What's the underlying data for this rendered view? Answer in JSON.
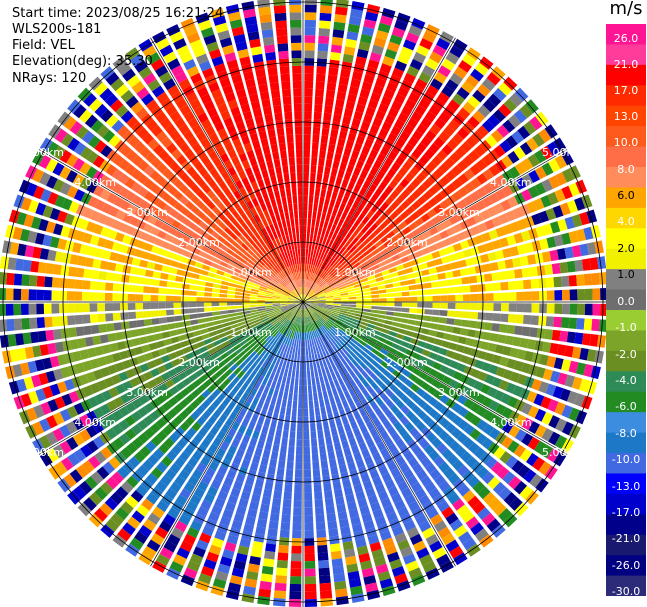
{
  "header": {
    "start_time": "Start time: 2023/08/25 16:21:24",
    "site": "WLS200s-181",
    "field": "Field: VEL",
    "elevation": "Elevation(deg): 35.30",
    "nrays": "NRays: 120"
  },
  "colorbar": {
    "unit": "m/s",
    "ticks": [
      "26.0",
      "21.0",
      "17.0",
      "13.0",
      "10.0",
      "8.0",
      "6.0",
      "4.0",
      "2.0",
      "1.0",
      "0.0",
      "-1.0",
      "-2.0",
      "-4.0",
      "-6.0",
      "-8.0",
      "-10.0",
      "-13.0",
      "-17.0",
      "-21.0",
      "-26.0",
      "-30.0"
    ],
    "colors": [
      "#ff1493",
      "#ff3c9a",
      "#ff0000",
      "#ff2a00",
      "#ff4500",
      "#ff5a1e",
      "#ff6e46",
      "#ff8c5a",
      "#ffa500",
      "#ffd700",
      "#ffff00",
      "#f0f000",
      "#808080",
      "#6e6e6e",
      "#9acd32",
      "#7ba428",
      "#6b8e23",
      "#2e8b57",
      "#228b22",
      "#3c8ce0",
      "#1e78c8",
      "#4169e1",
      "#0000ff",
      "#0000cd",
      "#00008b",
      "#191970",
      "#000080",
      "#2b2b7a"
    ]
  },
  "chart_data": {
    "type": "heatmap",
    "subtype": "radar-ppi",
    "field": "VEL",
    "unit": "m/s",
    "nrays": 120,
    "range_rings_km": [
      1.0,
      2.0,
      3.0,
      4.0,
      5.0
    ],
    "ring_labels": [
      "1.00km",
      "2.00km",
      "3.00km",
      "4.00km",
      "5.00km"
    ],
    "colorbar_ticks": [
      26.0,
      21.0,
      17.0,
      13.0,
      10.0,
      8.0,
      6.0,
      4.0,
      2.0,
      1.0,
      0.0,
      -1.0,
      -2.0,
      -4.0,
      -6.0,
      -8.0,
      -10.0,
      -13.0,
      -17.0,
      -21.0,
      -26.0,
      -30.0
    ],
    "pattern": "Radial velocity field: orange/red (positive, ~8 to 17 m/s) toward north, yellow band (~2 m/s) near east-west axis north side, grey (~0 m/s) along east-west, green (-2 to -6 m/s) south, blue (-8 to -13 m/s) far south; outer ranges noisy"
  }
}
